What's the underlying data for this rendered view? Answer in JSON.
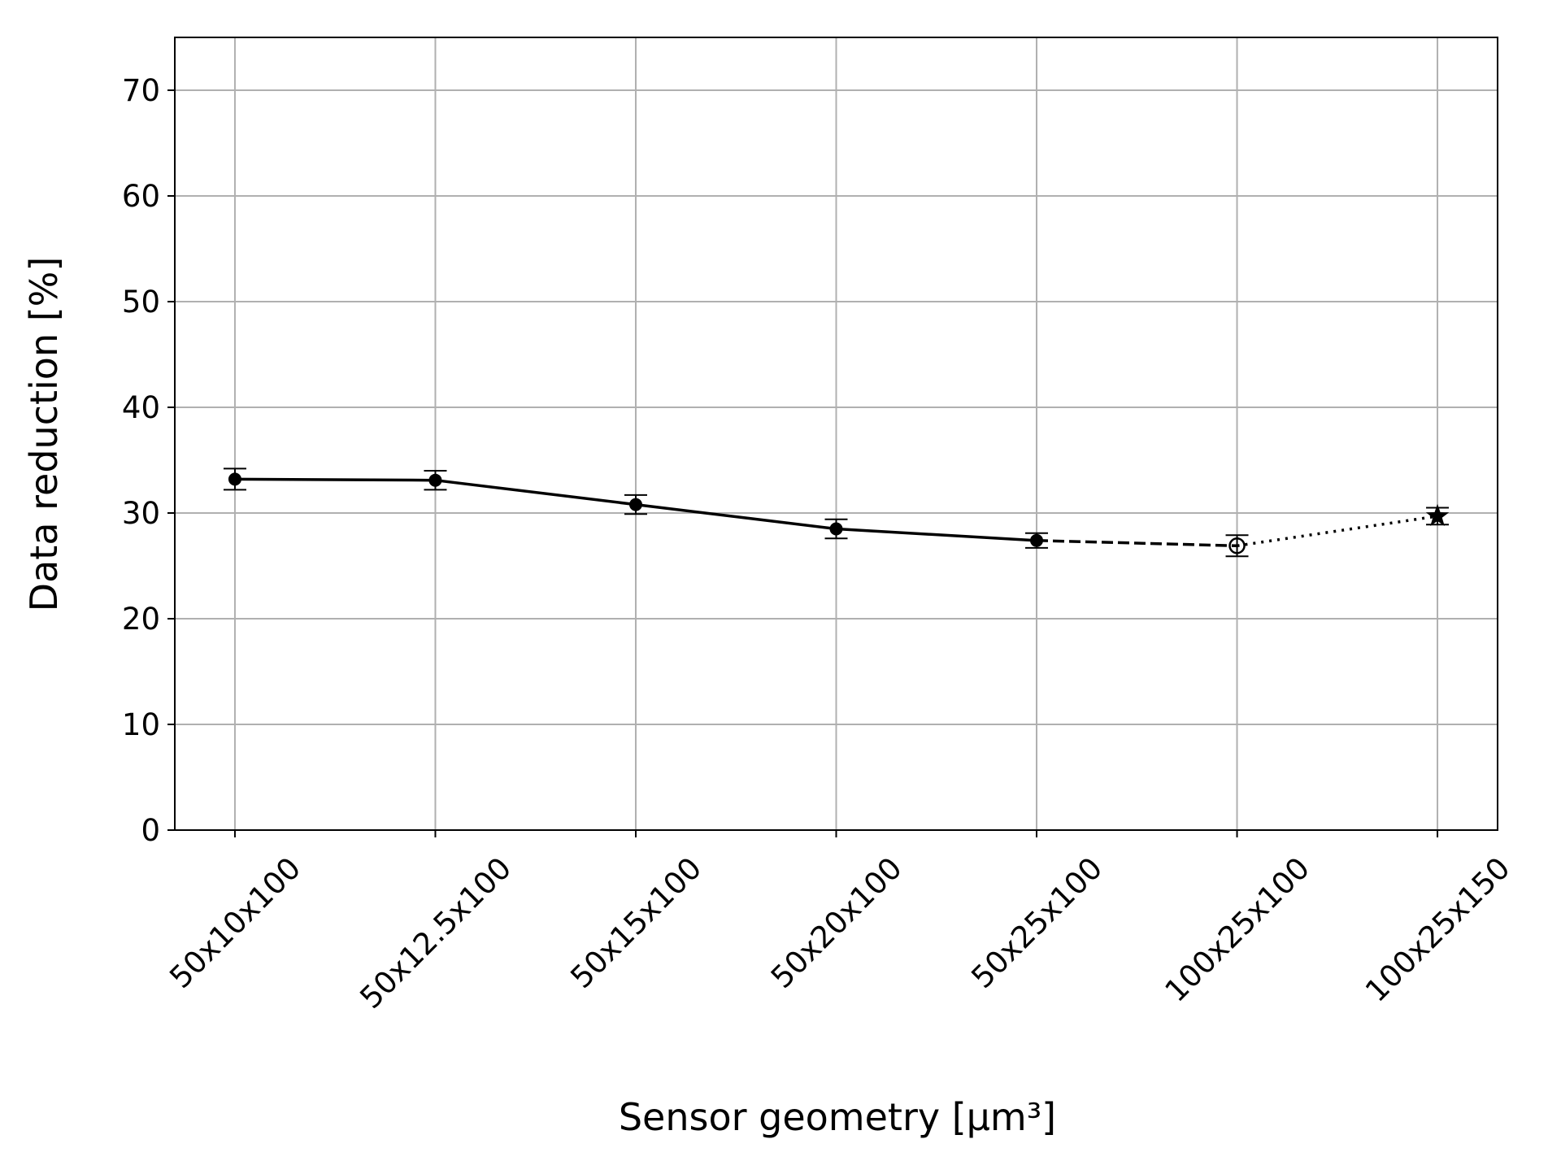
{
  "chart_data": {
    "type": "line",
    "x_label": "Sensor geometry [μm³]",
    "y_label": "Data reduction [%]",
    "categories": [
      "50x10x100",
      "50x12.5x100",
      "50x15x100",
      "50x20x100",
      "50x25x100",
      "100x25x100",
      "100x25x150"
    ],
    "series": [
      {
        "color": "#000000",
        "values": [
          33.2,
          33.1,
          30.8,
          28.5,
          27.4,
          26.9,
          29.7
        ],
        "errors": [
          1.0,
          0.9,
          0.9,
          0.9,
          0.7,
          1.0,
          0.8
        ]
      }
    ],
    "markers": [
      "filled",
      "filled",
      "filled",
      "filled",
      "filled",
      "open",
      "star"
    ],
    "linestyles": [
      "solid",
      "solid",
      "solid",
      "solid",
      "dashed",
      "dotted"
    ],
    "ylim": [
      0,
      75
    ],
    "yticks": [
      0,
      10,
      20,
      30,
      40,
      50,
      60,
      70
    ],
    "grid": true
  }
}
